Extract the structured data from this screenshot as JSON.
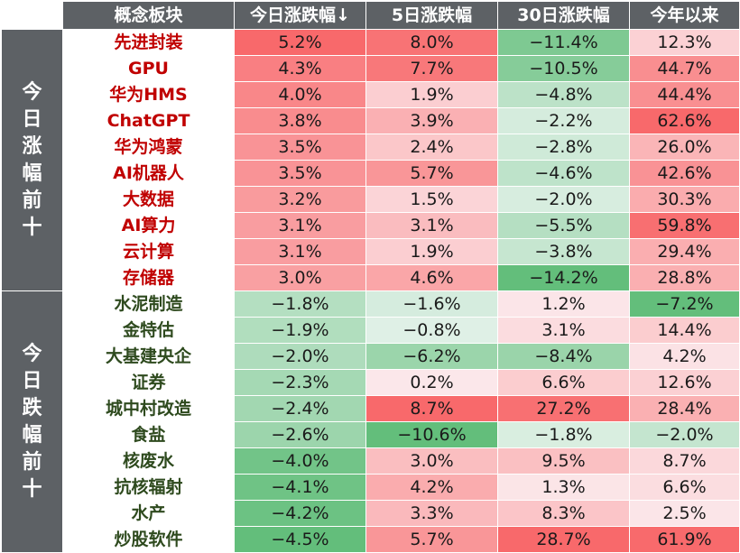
{
  "colors": {
    "header_bg": "#5d6165",
    "up_text": "#c00000",
    "down_text": "#2e4a1e",
    "positive_max": "#f8696b",
    "negative_max": "#63be7b"
  },
  "chart_data": {
    "type": "table",
    "columns": [
      "概念板块",
      "今日涨跌幅↓",
      "5日涨跌幅",
      "30日涨跌幅",
      "今年以来"
    ],
    "groups": [
      {
        "label": "今日涨幅前十",
        "rows": [
          {
            "name": "先进封装",
            "values": [
              "5.2%",
              "8.0%",
              "−11.4%",
              "12.3%"
            ]
          },
          {
            "name": "GPU",
            "values": [
              "4.3%",
              "7.7%",
              "−10.5%",
              "44.7%"
            ]
          },
          {
            "name": "华为HMS",
            "values": [
              "4.0%",
              "1.9%",
              "−4.8%",
              "44.4%"
            ]
          },
          {
            "name": "ChatGPT",
            "values": [
              "3.8%",
              "3.9%",
              "−2.2%",
              "62.6%"
            ]
          },
          {
            "name": "华为鸿蒙",
            "values": [
              "3.5%",
              "2.4%",
              "−2.8%",
              "26.0%"
            ]
          },
          {
            "name": "AI机器人",
            "values": [
              "3.5%",
              "5.7%",
              "−4.6%",
              "42.6%"
            ]
          },
          {
            "name": "大数据",
            "values": [
              "3.2%",
              "1.5%",
              "−2.0%",
              "30.3%"
            ]
          },
          {
            "name": "AI算力",
            "values": [
              "3.1%",
              "3.1%",
              "−5.5%",
              "59.8%"
            ]
          },
          {
            "name": "云计算",
            "values": [
              "3.1%",
              "1.9%",
              "−3.8%",
              "29.4%"
            ]
          },
          {
            "name": "存储器",
            "values": [
              "3.0%",
              "4.6%",
              "−14.2%",
              "28.8%"
            ]
          }
        ]
      },
      {
        "label": "今日跌幅前十",
        "rows": [
          {
            "name": "水泥制造",
            "values": [
              "−1.8%",
              "−1.6%",
              "1.2%",
              "−7.2%"
            ]
          },
          {
            "name": "金特估",
            "values": [
              "−1.9%",
              "−0.8%",
              "3.1%",
              "14.4%"
            ]
          },
          {
            "name": "大基建央企",
            "values": [
              "−2.0%",
              "−6.2%",
              "−8.4%",
              "4.2%"
            ]
          },
          {
            "name": "证券",
            "values": [
              "−2.3%",
              "0.2%",
              "6.6%",
              "12.6%"
            ]
          },
          {
            "name": "城中村改造",
            "values": [
              "−2.4%",
              "8.7%",
              "27.2%",
              "28.4%"
            ]
          },
          {
            "name": "食盐",
            "values": [
              "−2.6%",
              "−10.6%",
              "−1.8%",
              "−2.0%"
            ]
          },
          {
            "name": "核废水",
            "values": [
              "−4.0%",
              "3.0%",
              "9.5%",
              "8.7%"
            ]
          },
          {
            "name": "抗核辐射",
            "values": [
              "−4.1%",
              "4.2%",
              "1.3%",
              "6.6%"
            ]
          },
          {
            "name": "水产",
            "values": [
              "−4.2%",
              "3.3%",
              "8.3%",
              "2.5%"
            ]
          },
          {
            "name": "炒股软件",
            "values": [
              "−4.5%",
              "5.7%",
              "28.7%",
              "61.9%"
            ]
          }
        ]
      }
    ]
  }
}
